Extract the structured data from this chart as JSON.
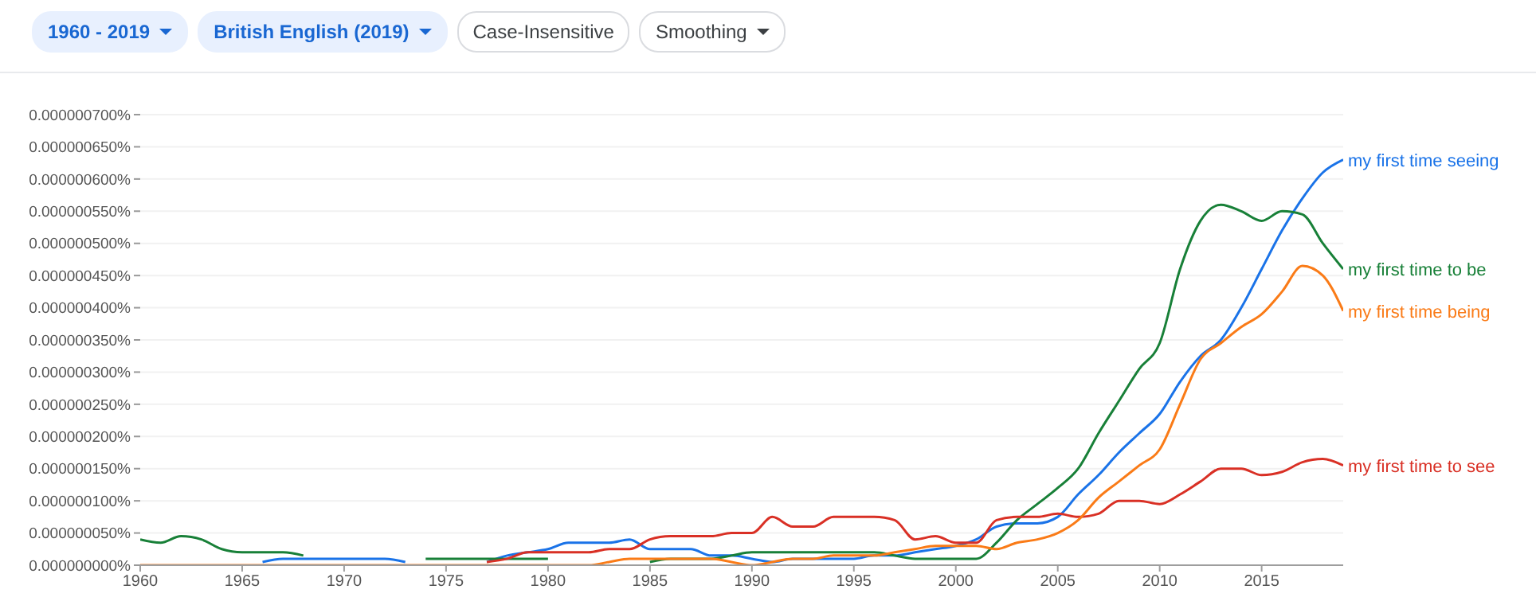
{
  "chart_data": {
    "type": "line",
    "annotations": [
      "1960 - 2019",
      "British English (2019)",
      "Case-Insensitive",
      "Smoothing"
    ],
    "x": [
      1960,
      1961,
      1962,
      1963,
      1964,
      1965,
      1966,
      1967,
      1968,
      1969,
      1970,
      1971,
      1972,
      1973,
      1974,
      1975,
      1976,
      1977,
      1978,
      1979,
      1980,
      1981,
      1982,
      1983,
      1984,
      1985,
      1986,
      1987,
      1988,
      1989,
      1990,
      1991,
      1992,
      1993,
      1994,
      1995,
      1996,
      1997,
      1998,
      1999,
      2000,
      2001,
      2002,
      2003,
      2004,
      2005,
      2006,
      2007,
      2008,
      2009,
      2010,
      2011,
      2012,
      2013,
      2014,
      2015,
      2016,
      2017,
      2018,
      2019
    ],
    "xlim": [
      1960,
      2019
    ],
    "xticks": [
      1960,
      1965,
      1970,
      1975,
      1980,
      1985,
      1990,
      1995,
      2000,
      2005,
      2010,
      2015
    ],
    "ylim": [
      0,
      7e-07
    ],
    "yticks": [
      {
        "value": 0,
        "label": "0.000000000%"
      },
      {
        "value": 5e-08,
        "label": "0.000000050%"
      },
      {
        "value": 1e-07,
        "label": "0.000000100%"
      },
      {
        "value": 1.5e-07,
        "label": "0.000000150%"
      },
      {
        "value": 2e-07,
        "label": "0.000000200%"
      },
      {
        "value": 2.5e-07,
        "label": "0.000000250%"
      },
      {
        "value": 3e-07,
        "label": "0.000000300%"
      },
      {
        "value": 3.5e-07,
        "label": "0.000000350%"
      },
      {
        "value": 4e-07,
        "label": "0.000000400%"
      },
      {
        "value": 4.5e-07,
        "label": "0.000000450%"
      },
      {
        "value": 5e-07,
        "label": "0.000000500%"
      },
      {
        "value": 5.5e-07,
        "label": "0.000000550%"
      },
      {
        "value": 6e-07,
        "label": "0.000000600%"
      },
      {
        "value": 6.5e-07,
        "label": "0.000000650%"
      },
      {
        "value": 7e-07,
        "label": "0.000000700%"
      }
    ],
    "grid": "y",
    "marker": "none",
    "line_style": "solid",
    "series": [
      {
        "name": "my first time seeing",
        "color": "#1a73e8",
        "values": [
          null,
          null,
          null,
          null,
          null,
          null,
          5e-09,
          1e-08,
          1e-08,
          1e-08,
          1e-08,
          1e-08,
          1e-08,
          5e-09,
          null,
          null,
          null,
          5e-09,
          1.5e-08,
          2e-08,
          2.5e-08,
          3.5e-08,
          3.5e-08,
          3.5e-08,
          4e-08,
          2.5e-08,
          2.5e-08,
          2.5e-08,
          1.5e-08,
          1.5e-08,
          1e-08,
          5e-09,
          1e-08,
          1e-08,
          1e-08,
          1e-08,
          1.5e-08,
          1.5e-08,
          2e-08,
          2.5e-08,
          3e-08,
          4e-08,
          6e-08,
          6.5e-08,
          6.5e-08,
          7.5e-08,
          1.1e-07,
          1.4e-07,
          1.75e-07,
          2.05e-07,
          2.35e-07,
          2.85e-07,
          3.25e-07,
          3.5e-07,
          4e-07,
          4.6e-07,
          5.2e-07,
          5.7e-07,
          6.1e-07,
          6.3e-07
        ]
      },
      {
        "name": "my first time to be",
        "color": "#188038",
        "values": [
          4e-08,
          3.5e-08,
          4.5e-08,
          4e-08,
          2.5e-08,
          2e-08,
          2e-08,
          2e-08,
          1.5e-08,
          null,
          null,
          null,
          null,
          null,
          1e-08,
          1e-08,
          1e-08,
          1e-08,
          1e-08,
          1e-08,
          1e-08,
          null,
          null,
          null,
          null,
          5e-09,
          1e-08,
          1e-08,
          1e-08,
          1.5e-08,
          2e-08,
          2e-08,
          2e-08,
          2e-08,
          2e-08,
          2e-08,
          2e-08,
          1.5e-08,
          1e-08,
          1e-08,
          1e-08,
          1e-08,
          3.5e-08,
          7e-08,
          9.5e-08,
          1.2e-07,
          1.5e-07,
          2.05e-07,
          2.55e-07,
          3.05e-07,
          3.45e-07,
          4.6e-07,
          5.35e-07,
          5.6e-07,
          5.5e-07,
          5.35e-07,
          5.5e-07,
          5.45e-07,
          5e-07,
          4.6e-07
        ]
      },
      {
        "name": "my first time to see",
        "color": "#d93025",
        "values": [
          null,
          null,
          null,
          null,
          null,
          null,
          null,
          null,
          null,
          null,
          null,
          null,
          null,
          null,
          null,
          null,
          null,
          5e-09,
          1e-08,
          2e-08,
          2e-08,
          2e-08,
          2e-08,
          2.5e-08,
          2.5e-08,
          4e-08,
          4.5e-08,
          4.5e-08,
          4.5e-08,
          5e-08,
          5e-08,
          7.5e-08,
          6e-08,
          6e-08,
          7.5e-08,
          7.5e-08,
          7.5e-08,
          7e-08,
          4e-08,
          4.5e-08,
          3.5e-08,
          3.5e-08,
          7e-08,
          7.5e-08,
          7.5e-08,
          8e-08,
          7.5e-08,
          8e-08,
          1e-07,
          1e-07,
          9.5e-08,
          1.1e-07,
          1.3e-07,
          1.5e-07,
          1.5e-07,
          1.4e-07,
          1.45e-07,
          1.6e-07,
          1.65e-07,
          1.55e-07
        ]
      },
      {
        "name": "my first time being",
        "color": "#fa7b17",
        "values": [
          0,
          0,
          0,
          0,
          0,
          0,
          0,
          0,
          0,
          0,
          0,
          0,
          0,
          0,
          0,
          0,
          0,
          0,
          0,
          0,
          0,
          0,
          0,
          5e-09,
          1e-08,
          1e-08,
          1e-08,
          1e-08,
          1e-08,
          5e-09,
          0,
          5e-09,
          1e-08,
          1e-08,
          1.5e-08,
          1.5e-08,
          1.5e-08,
          2e-08,
          2.5e-08,
          3e-08,
          3e-08,
          3e-08,
          2.5e-08,
          3.5e-08,
          4e-08,
          5e-08,
          7e-08,
          1.05e-07,
          1.3e-07,
          1.55e-07,
          1.8e-07,
          2.5e-07,
          3.2e-07,
          3.45e-07,
          3.7e-07,
          3.9e-07,
          4.25e-07,
          4.65e-07,
          4.5e-07,
          3.95e-07
        ]
      }
    ]
  }
}
